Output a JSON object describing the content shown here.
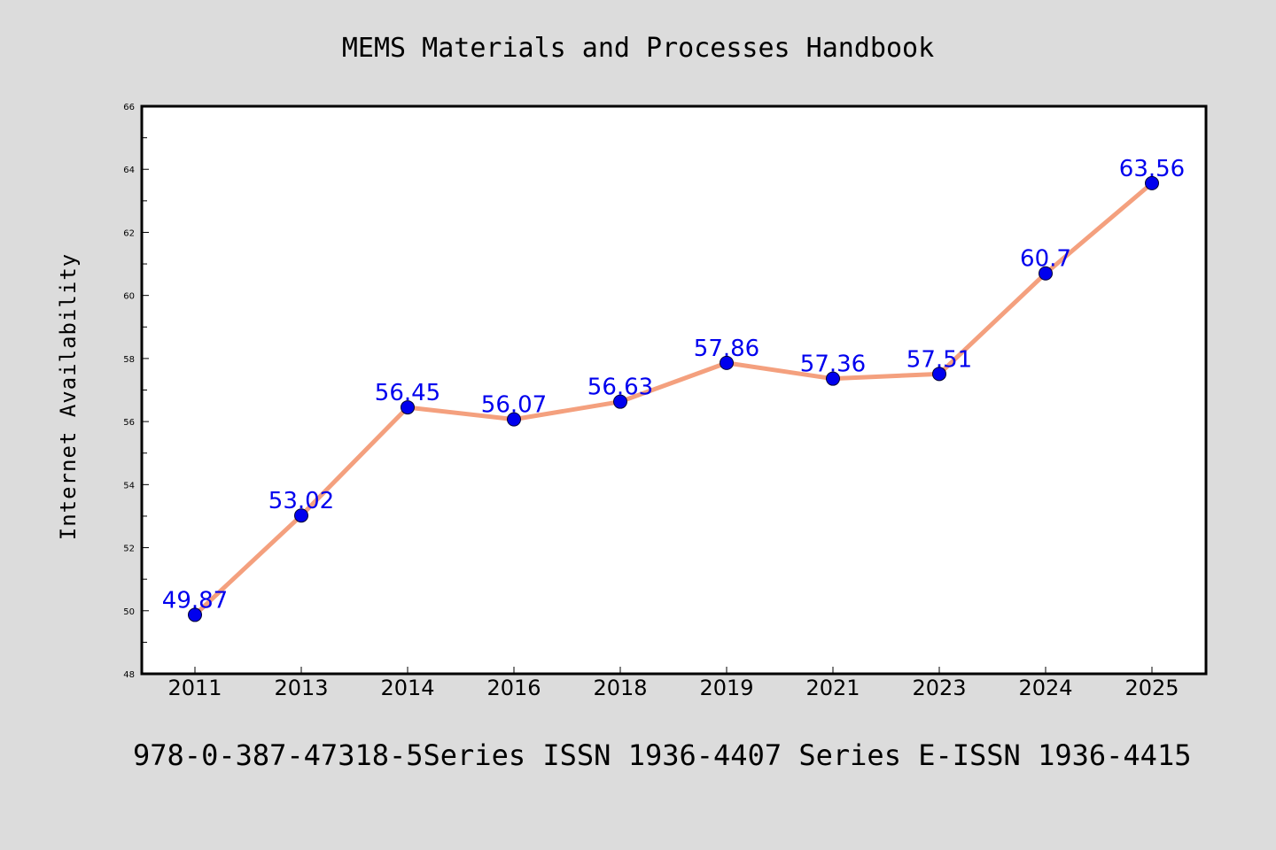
{
  "colors": {
    "background": "#dcdcdc",
    "plot_background": "#ffffff",
    "line": "#f4a07e",
    "marker": "#0000ee",
    "data_label": "#0000ee"
  },
  "footer": {
    "text": "978-0-387-47318-5Series ISSN 1936-4407 Series E-ISSN 1936-4415"
  },
  "chart_data": {
    "type": "line",
    "title": "MEMS Materials and Processes Handbook",
    "xlabel": "",
    "ylabel": "Internet Availability",
    "categories": [
      "2011",
      "2013",
      "2014",
      "2016",
      "2018",
      "2019",
      "2021",
      "2023",
      "2024",
      "2025"
    ],
    "series": [
      {
        "values": [
          49.87,
          53.02,
          56.45,
          56.07,
          56.63,
          57.86,
          57.36,
          57.51,
          60.7,
          63.56
        ],
        "labels": [
          "49.87",
          "53.02",
          "56.45",
          "56.07",
          "56.63",
          "57.86",
          "57.36",
          "57.51",
          "60.7",
          "63.56"
        ]
      }
    ],
    "ylim": [
      48,
      66
    ],
    "yticks": [
      "48",
      "50",
      "52",
      "54",
      "56",
      "58",
      "60",
      "62",
      "64",
      "66"
    ],
    "grid": false,
    "legend": "none"
  }
}
